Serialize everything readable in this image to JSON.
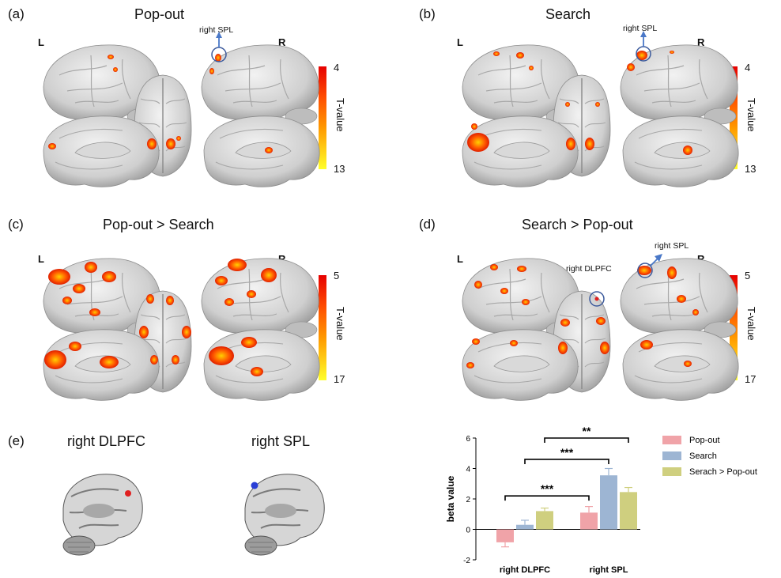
{
  "panels": [
    {
      "label": "(a)",
      "title": "Pop-out",
      "annotations": [
        "right SPL"
      ],
      "colorbar": {
        "min": "4",
        "max": "13",
        "label": "T-value"
      }
    },
    {
      "label": "(b)",
      "title": "Search",
      "annotations": [
        "right SPL"
      ],
      "colorbar": {
        "min": "4",
        "max": "13",
        "label": "T-value"
      }
    },
    {
      "label": "(c)",
      "title": "Pop-out > Search",
      "annotations": [],
      "colorbar": {
        "min": "5",
        "max": "17",
        "label": "T-value"
      }
    },
    {
      "label": "(d)",
      "title": "Search > Pop-out",
      "annotations": [
        "right SPL",
        "right DLPFC"
      ],
      "colorbar": {
        "min": "5",
        "max": "17",
        "label": "T-value"
      }
    }
  ],
  "hemisphere_labels": {
    "left": "L",
    "right": "R"
  },
  "panel_e": {
    "label": "(e)",
    "slice_titles": [
      "right DLPFC",
      "right SPL"
    ]
  },
  "colors": {
    "popout": "#f0a3a8",
    "search": "#9db5d3",
    "search_gt_popout": "#cfcf7f",
    "roi_dlpfc": "#e02020",
    "roi_spl": "#2a3fd6"
  },
  "chart_data": {
    "type": "bar",
    "categories": [
      "right DLPFC",
      "right SPL"
    ],
    "series": [
      {
        "name": "Pop-out",
        "values": [
          -0.85,
          1.1
        ],
        "errors": [
          0.3,
          0.4
        ]
      },
      {
        "name": "Search",
        "values": [
          0.3,
          3.55
        ],
        "errors": [
          0.3,
          0.45
        ]
      },
      {
        "name": "Serach > Pop-out",
        "values": [
          1.2,
          2.45
        ],
        "errors": [
          0.2,
          0.3
        ]
      }
    ],
    "ylabel": "beta value",
    "xlabel": "",
    "ylim": [
      -2,
      6
    ],
    "yticks": [
      "-2",
      "0",
      "2",
      "4",
      "6"
    ],
    "significance": [
      "***",
      "***",
      "**"
    ],
    "legend": "right"
  }
}
